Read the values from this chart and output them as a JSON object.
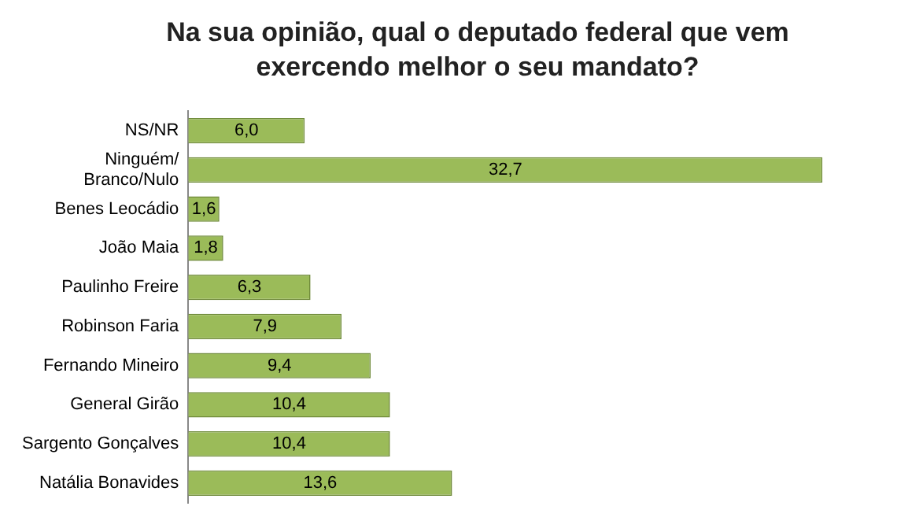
{
  "chart_data": {
    "type": "bar",
    "orientation": "horizontal",
    "title": "Na sua opinião, qual o deputado federal que vem exercendo melhor o seu mandato?",
    "categories": [
      "NS/NR",
      "Ninguém/\nBranco/Nulo",
      "Benes Leocádio",
      "João Maia",
      "Paulinho Freire",
      "Robinson Faria",
      "Fernando Mineiro",
      "General Girão",
      "Sargento Gonçalves",
      "Natália Bonavides"
    ],
    "values": [
      6.0,
      32.7,
      1.6,
      1.8,
      6.3,
      7.9,
      9.4,
      10.4,
      10.4,
      13.6
    ],
    "value_labels": [
      "6,0",
      "32,7",
      "1,6",
      "1,8",
      "6,3",
      "7,9",
      "9,4",
      "10,4",
      "10,4",
      "13,6"
    ],
    "color": "#9bbb59"
  }
}
